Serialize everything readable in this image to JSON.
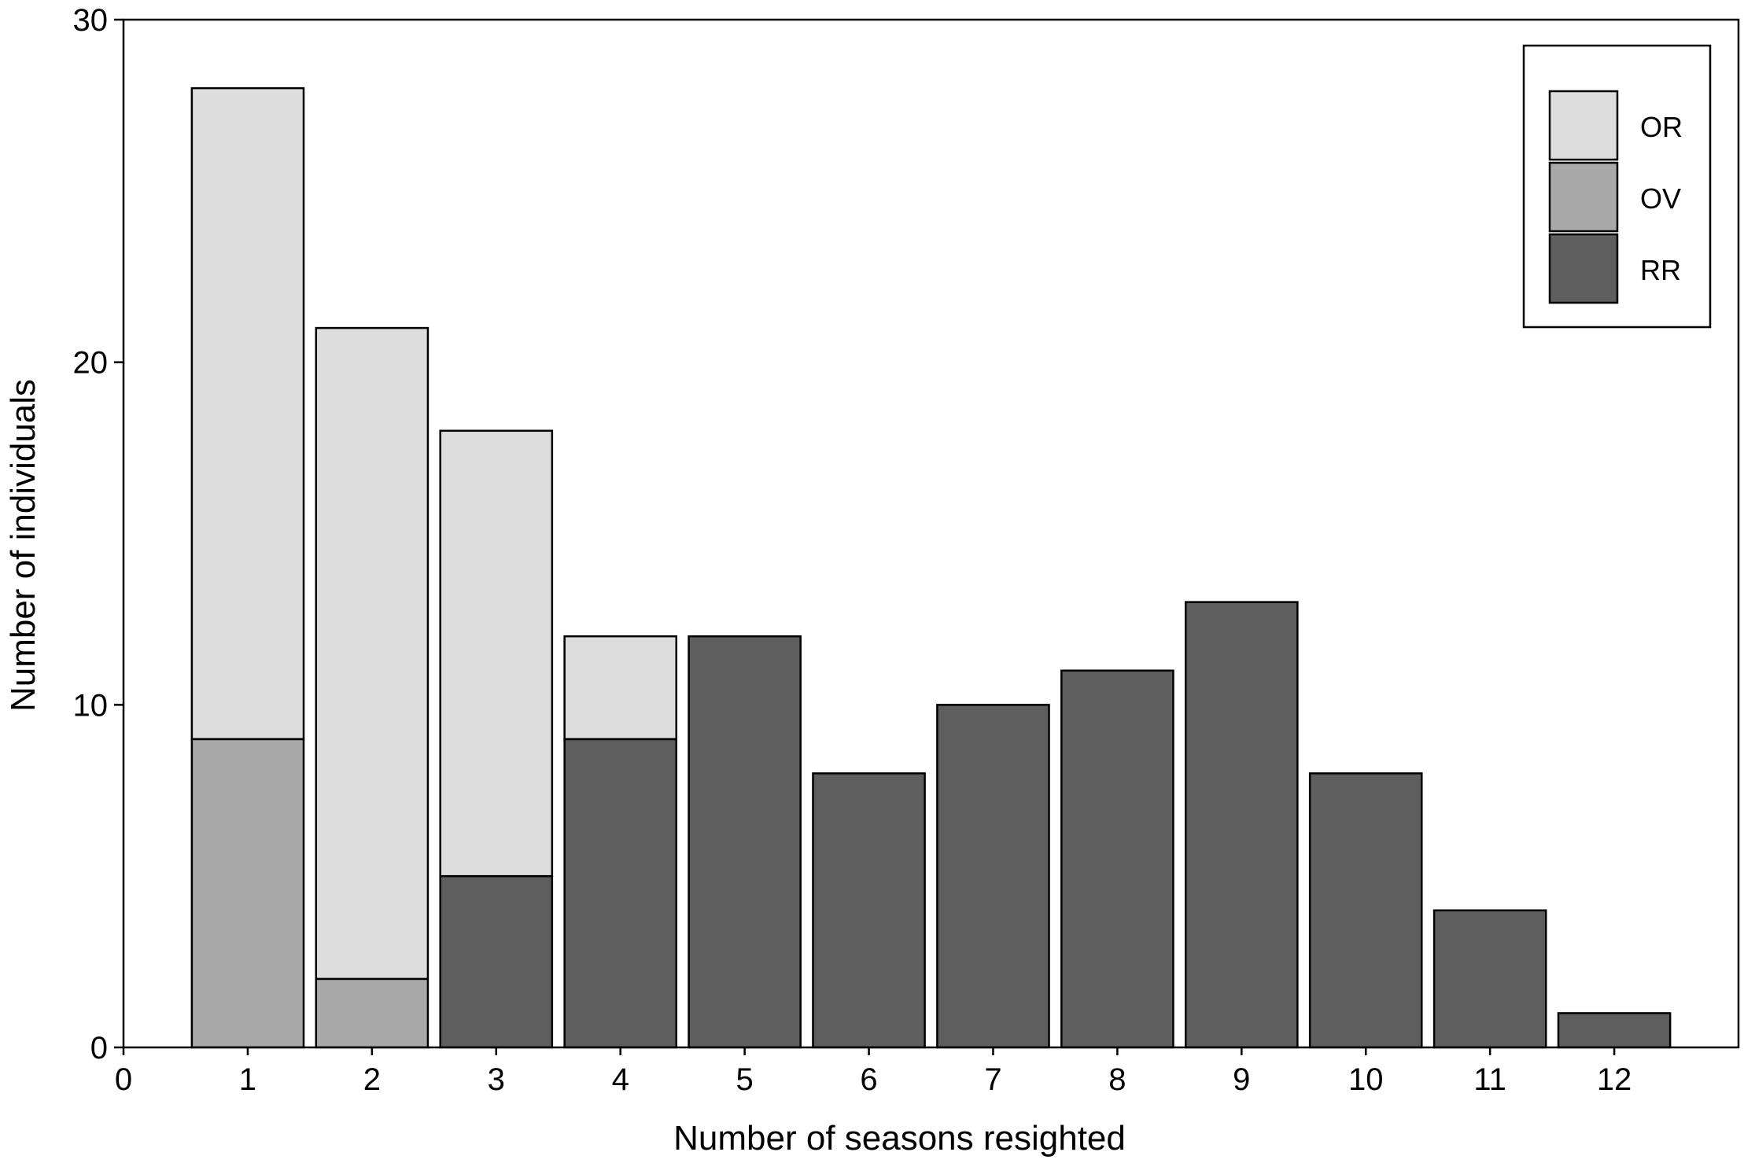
{
  "chart_data": {
    "type": "bar",
    "stacked": true,
    "xlabel": "Number of seasons resighted",
    "ylabel": "Number of individuals",
    "xlim": [
      0,
      13
    ],
    "ylim": [
      0,
      30
    ],
    "x_ticks": [
      "0",
      "1",
      "2",
      "3",
      "4",
      "5",
      "6",
      "7",
      "8",
      "9",
      "10",
      "11",
      "12"
    ],
    "y_ticks": [
      "0",
      "10",
      "20",
      "30"
    ],
    "categories": [
      1,
      2,
      3,
      4,
      5,
      6,
      7,
      8,
      9,
      10,
      11,
      12
    ],
    "series": [
      {
        "name": "RR",
        "color": "#5e5e5e",
        "values": [
          0,
          0,
          5,
          9,
          12,
          8,
          10,
          11,
          13,
          8,
          4,
          1
        ]
      },
      {
        "name": "OV",
        "color": "#a9a9a9",
        "values": [
          9,
          2,
          0,
          0,
          0,
          0,
          0,
          0,
          0,
          0,
          0,
          0
        ]
      },
      {
        "name": "OR",
        "color": "#dddddd",
        "values": [
          19,
          19,
          13,
          3,
          0,
          0,
          0,
          0,
          0,
          0,
          0,
          0
        ]
      }
    ],
    "legend": {
      "position": "top-right",
      "order": [
        "OR",
        "OV",
        "RR"
      ]
    },
    "grid": false
  }
}
